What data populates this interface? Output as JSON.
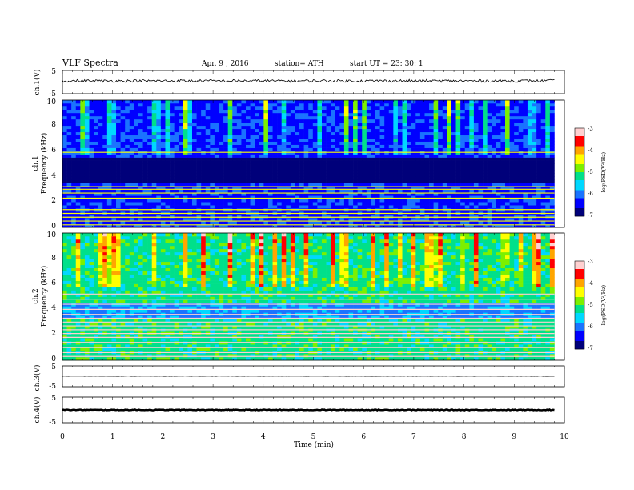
{
  "header": {
    "title": "VLF  Spectra",
    "date": "Apr. 9  , 2016",
    "station": "station= ATH",
    "start": "start  UT  =    23: 30: 1"
  },
  "colors": {
    "spectrum_colormap": [
      "#00007a",
      "#0000ff",
      "#1a73ff",
      "#00d8ff",
      "#00e08a",
      "#7cf000",
      "#ffff00",
      "#ffa500",
      "#ff0000",
      "#ffd0d0"
    ],
    "trace": "#000000",
    "frame": "#000000"
  },
  "chart_data": [
    {
      "type": "line",
      "name": "ch1-waveform",
      "ylabel": "ch.1(V)",
      "ylim": [
        -5,
        5
      ],
      "yticks": [
        "5",
        "-5"
      ],
      "x_range_min": [
        0,
        9.8
      ],
      "level_V": 0.5,
      "amplitude": "small, noisy, with sparse impulsive spikes"
    },
    {
      "type": "heatmap",
      "name": "ch1-spectrogram",
      "ylabel_top": "ch.1",
      "ylabel": "Frequency  (kHz)",
      "ylim": [
        0,
        10
      ],
      "yticks": [
        "0",
        "2",
        "4",
        "6",
        "8",
        "10"
      ],
      "colorbar": {
        "label": "log(PSD(V²/Hz)",
        "range": [
          -7,
          -3
        ],
        "ticks": [
          "-3",
          "-4",
          "-5",
          "-6",
          "-7"
        ]
      },
      "dominant_level": -6.3,
      "persistent_line_freqs_kHz": [
        0.2,
        0.5,
        0.8,
        1.1,
        1.4,
        2.3,
        2.7,
        3.0,
        3.2,
        5.9
      ],
      "quiet_band_kHz": [
        3.4,
        5.5
      ]
    },
    {
      "type": "heatmap",
      "name": "ch2-spectrogram",
      "ylabel_top": "ch.2",
      "ylabel": "Frequency  (kHz)",
      "ylim": [
        0,
        10
      ],
      "yticks": [
        "0",
        "2",
        "4",
        "6",
        "8",
        "10"
      ],
      "colorbar": {
        "label": "log(PSD(V²/Hz)",
        "range": [
          -7,
          -3
        ],
        "ticks": [
          "-3",
          "-4",
          "-5",
          "-6",
          "-7"
        ]
      },
      "dominant_level": -5.2,
      "persistent_line_freqs_kHz": [
        0.3,
        0.6,
        1.0,
        1.4,
        1.8,
        2.1,
        2.4,
        2.7,
        3.0,
        3.3,
        3.6,
        4.0,
        4.4,
        4.8,
        5.2
      ],
      "quiet_band_kHz": [
        3.2,
        4.6
      ]
    },
    {
      "type": "line",
      "name": "ch3-waveform",
      "ylabel": "ch.3(V)",
      "ylim": [
        -5,
        5
      ],
      "yticks": [
        "5",
        "-5"
      ],
      "x_range_min": [
        0,
        9.8
      ],
      "level_V": 0,
      "amplitude": "near zero"
    },
    {
      "type": "line",
      "name": "ch4-waveform",
      "ylabel": "ch.4(V)",
      "ylim": [
        -5,
        5
      ],
      "yticks": [
        "5",
        "-5"
      ],
      "x_range_min": [
        0,
        9.8
      ],
      "level_V": 0,
      "amplitude": "small, thick constant band"
    }
  ],
  "xaxis": {
    "label": "Time  (min)",
    "range": [
      0,
      10
    ],
    "ticks": [
      "0",
      "1",
      "2",
      "3",
      "4",
      "5",
      "6",
      "7",
      "8",
      "9",
      "10"
    ]
  }
}
